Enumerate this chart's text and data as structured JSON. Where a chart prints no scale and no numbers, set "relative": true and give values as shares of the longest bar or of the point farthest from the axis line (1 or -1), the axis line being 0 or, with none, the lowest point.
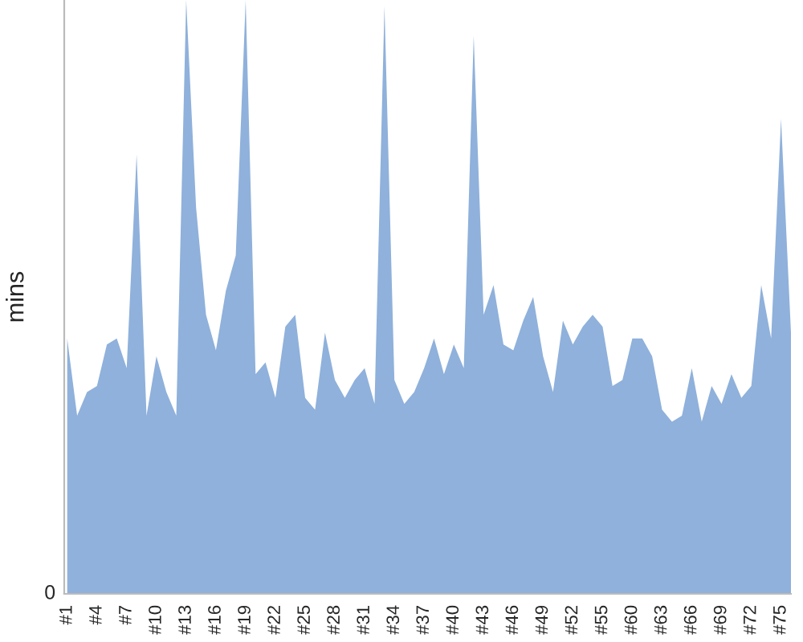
{
  "chart_data": {
    "type": "area",
    "ylabel": "mins",
    "relative": true,
    "annotations": [
      "0"
    ],
    "color": "#8fb1db",
    "grid": false,
    "legend": false,
    "categories": [
      "#1",
      null,
      null,
      "#4",
      null,
      null,
      "#7",
      null,
      null,
      "#10",
      null,
      null,
      "#13",
      null,
      null,
      "#16",
      null,
      null,
      "#19",
      null,
      null,
      "#22",
      null,
      null,
      "#25",
      null,
      null,
      "#28",
      null,
      null,
      "#31",
      null,
      null,
      "#34",
      null,
      null,
      "#37",
      null,
      null,
      "#40",
      null,
      null,
      "#43",
      null,
      null,
      "#46",
      null,
      null,
      "#49",
      null,
      null,
      "#52",
      null,
      null,
      "#55",
      null,
      null,
      "#60",
      null,
      null,
      "#63",
      null,
      null,
      "#66",
      null,
      null,
      "#69",
      null,
      null,
      "#72",
      null,
      null,
      "#75",
      null
    ],
    "values": [
      0.43,
      0.3,
      0.34,
      0.35,
      0.42,
      0.43,
      0.38,
      0.74,
      0.3,
      0.4,
      0.34,
      0.3,
      1,
      0.65,
      0.47,
      0.41,
      0.51,
      0.57,
      1,
      0.37,
      0.39,
      0.33,
      0.45,
      0.47,
      0.33,
      0.31,
      0.44,
      0.36,
      0.33,
      0.36,
      0.38,
      0.32,
      0.99,
      0.36,
      0.32,
      0.34,
      0.38,
      0.43,
      0.37,
      0.42,
      0.38,
      0.94,
      0.47,
      0.52,
      0.42,
      0.41,
      0.46,
      0.5,
      0.4,
      0.34,
      0.46,
      0.42,
      0.45,
      0.47,
      0.45,
      0.35,
      0.36,
      0.43,
      0.43,
      0.4,
      0.31,
      0.29,
      0.3,
      0.38,
      0.29,
      0.35,
      0.32,
      0.37,
      0.33,
      0.35,
      0.52,
      0.43,
      0.8,
      0.44
    ]
  }
}
